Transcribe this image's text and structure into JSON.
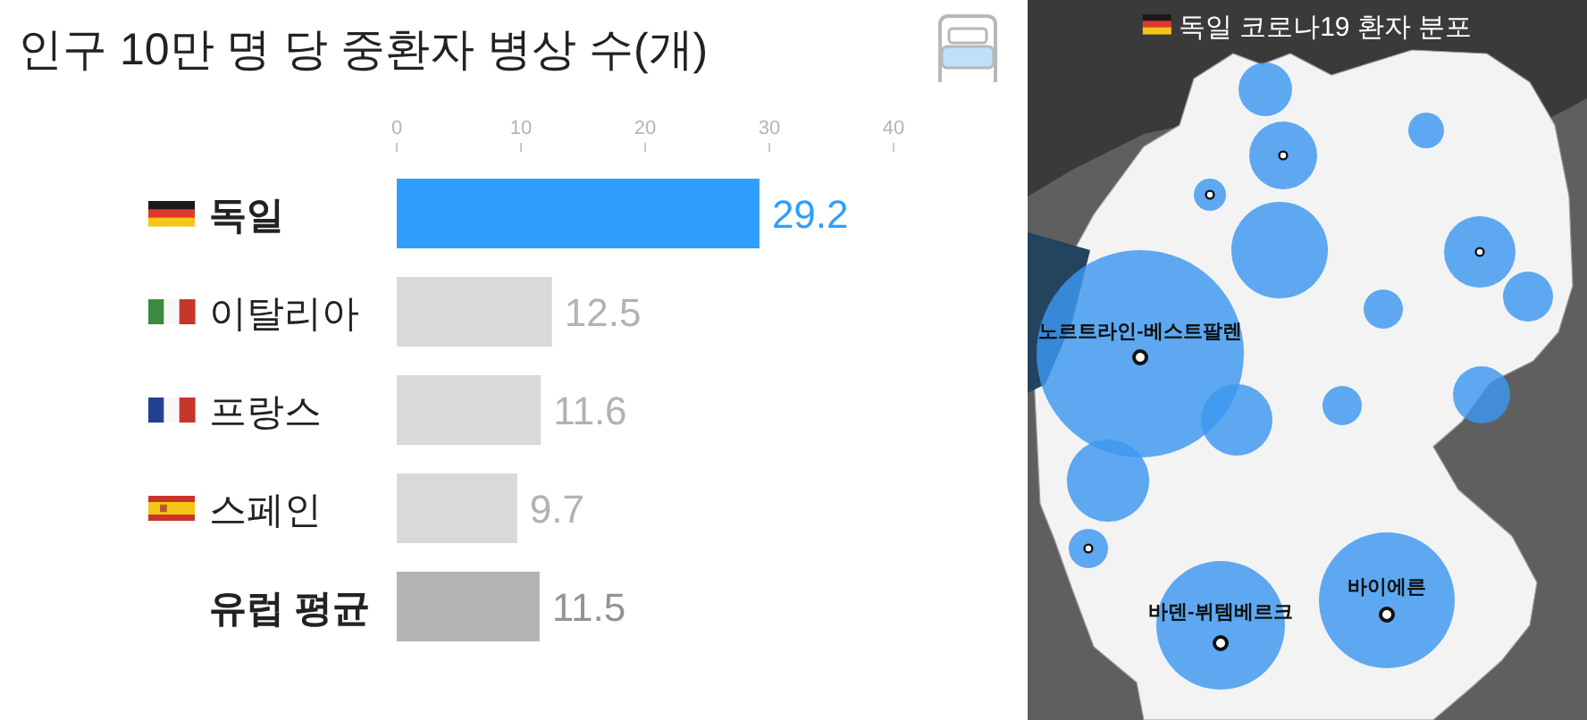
{
  "chart_data": [
    {
      "type": "bar",
      "orientation": "horizontal",
      "title": "인구 10만 명 당 중환자 병상 수(개)",
      "categories": [
        "독일",
        "이탈리아",
        "프랑스",
        "스페인",
        "유럽 평균"
      ],
      "values": [
        29.2,
        12.5,
        11.6,
        9.7,
        11.5
      ],
      "colors": [
        "#2e9ffc",
        "#d9d9d9",
        "#d9d9d9",
        "#d9d9d9",
        "#b3b3b3"
      ],
      "xlim": [
        0,
        40
      ],
      "xticks": [
        0,
        10,
        20,
        30,
        40
      ],
      "data_labels": true
    },
    {
      "type": "other",
      "title": "독일 코로나19 환자 분포",
      "annotations": [
        "노르트라인-베스트팔렌",
        "바덴-뷔템베르크",
        "바이에른"
      ]
    }
  ]
}
